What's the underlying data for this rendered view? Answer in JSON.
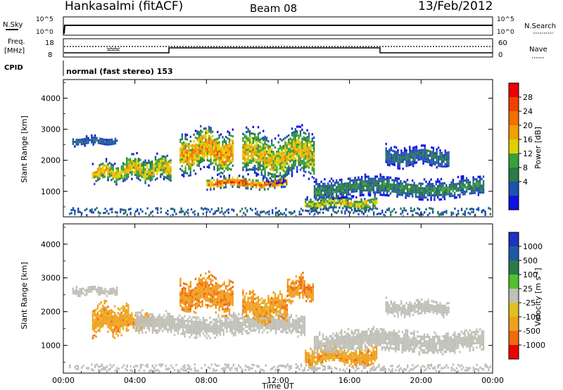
{
  "header": {
    "station": "Hankasalmi (fitACF)",
    "beam": "Beam 08",
    "date": "13/Feb/2012"
  },
  "top_panels": {
    "nsky_label": "N.Sky",
    "nsky_ticks": [
      "10^5",
      "10^0"
    ],
    "nsearch_label": "N.Search",
    "nsearch_ticks": [
      "10^5",
      "10^0"
    ],
    "freq_label_line1": "Freq.",
    "freq_label_line2": "[MHz]",
    "freq_ticks": [
      "18",
      "8"
    ],
    "nave_label": "Nave",
    "nave_ticks": [
      "60",
      "0"
    ],
    "cpid_label": "CPID",
    "mode_text": "normal (fast stereo) 153"
  },
  "axes": {
    "x_ticks": [
      "00:00",
      "04:00",
      "08:00",
      "12:00",
      "16:00",
      "20:00",
      "00:00"
    ],
    "x_label": "Time UT",
    "y_ticks": [
      "4000",
      "3000",
      "2000",
      "1000"
    ],
    "y_label": "Slant Range [km]"
  },
  "colorbars": {
    "power": {
      "label": "Power [dB]",
      "ticks": [
        "28",
        "24",
        "20",
        "16",
        "12",
        "8",
        "4"
      ],
      "colors": [
        "#1010e0",
        "#2050b0",
        "#2a7a4a",
        "#3aa03a",
        "#e0d000",
        "#f0a000",
        "#f07000",
        "#f04000",
        "#ee0000"
      ]
    },
    "velocity": {
      "label": "Velocity [m s",
      "label_sup": "-1",
      "label_end": "]",
      "ticks": [
        "1000",
        "500",
        "100",
        "25",
        "-25",
        "-100",
        "-500",
        "-1000"
      ],
      "colors": [
        "#2030c0",
        "#2058a8",
        "#2a7a4a",
        "#50c030",
        "#c0c0b8",
        "#e0c020",
        "#f0a020",
        "#f06a10",
        "#ee0000"
      ]
    }
  },
  "chart_data": [
    {
      "type": "heatmap",
      "title": "Power",
      "xlabel": "Time UT",
      "ylabel": "Slant Range [km]",
      "xlim_hours": [
        0,
        24
      ],
      "ylim_km": [
        180,
        4600
      ],
      "value_unit": "dB",
      "value_range": [
        0,
        32
      ],
      "features": [
        {
          "t_start": 0.5,
          "t_end": 3.0,
          "r_min": 2500,
          "r_max": 2800,
          "peak": 8
        },
        {
          "t_start": 1.6,
          "t_end": 3.6,
          "r_min": 1300,
          "r_max": 2000,
          "peak": 24
        },
        {
          "t_start": 3.5,
          "t_end": 6.0,
          "r_min": 1300,
          "r_max": 2200,
          "peak": 22
        },
        {
          "t_start": 6.5,
          "t_end": 9.5,
          "r_min": 1600,
          "r_max": 3100,
          "peak": 26
        },
        {
          "t_start": 8.0,
          "t_end": 12.5,
          "r_min": 1100,
          "r_max": 1500,
          "peak": 30
        },
        {
          "t_start": 10.0,
          "t_end": 14.0,
          "r_min": 1400,
          "r_max": 3000,
          "peak": 22
        },
        {
          "t_start": 13.5,
          "t_end": 17.5,
          "r_min": 400,
          "r_max": 900,
          "peak": 20
        },
        {
          "t_start": 14.0,
          "t_end": 23.5,
          "r_min": 800,
          "r_max": 1500,
          "peak": 12
        },
        {
          "t_start": 18.0,
          "t_end": 21.5,
          "r_min": 1800,
          "r_max": 2500,
          "peak": 10
        }
      ]
    },
    {
      "type": "heatmap",
      "title": "Velocity",
      "xlabel": "Time UT",
      "ylabel": "Slant Range [km]",
      "xlim_hours": [
        0,
        24
      ],
      "ylim_km": [
        180,
        4600
      ],
      "value_unit": "m s-1",
      "value_range": [
        -1000,
        1000
      ],
      "features": [
        {
          "t_start": 0.5,
          "t_end": 3.0,
          "r_min": 2500,
          "r_max": 2800,
          "typical": 0
        },
        {
          "t_start": 1.6,
          "t_end": 3.6,
          "r_min": 1300,
          "r_max": 2300,
          "typical": -300
        },
        {
          "t_start": 3.5,
          "t_end": 5.0,
          "r_min": 1500,
          "r_max": 2000,
          "typical": -300
        },
        {
          "t_start": 4.0,
          "t_end": 13.5,
          "r_min": 1300,
          "r_max": 2000,
          "typical": 0
        },
        {
          "t_start": 6.5,
          "t_end": 9.5,
          "r_min": 2000,
          "r_max": 3100,
          "typical": -400
        },
        {
          "t_start": 10.0,
          "t_end": 12.5,
          "r_min": 1700,
          "r_max": 2600,
          "typical": -300
        },
        {
          "t_start": 12.5,
          "t_end": 14.0,
          "r_min": 2300,
          "r_max": 3100,
          "typical": -400
        },
        {
          "t_start": 13.5,
          "t_end": 17.5,
          "r_min": 400,
          "r_max": 1000,
          "typical": -300
        },
        {
          "t_start": 14.0,
          "t_end": 23.5,
          "r_min": 800,
          "r_max": 1500,
          "typical": 0
        },
        {
          "t_start": 18.0,
          "t_end": 21.5,
          "r_min": 1900,
          "r_max": 2400,
          "typical": 0
        }
      ]
    }
  ]
}
